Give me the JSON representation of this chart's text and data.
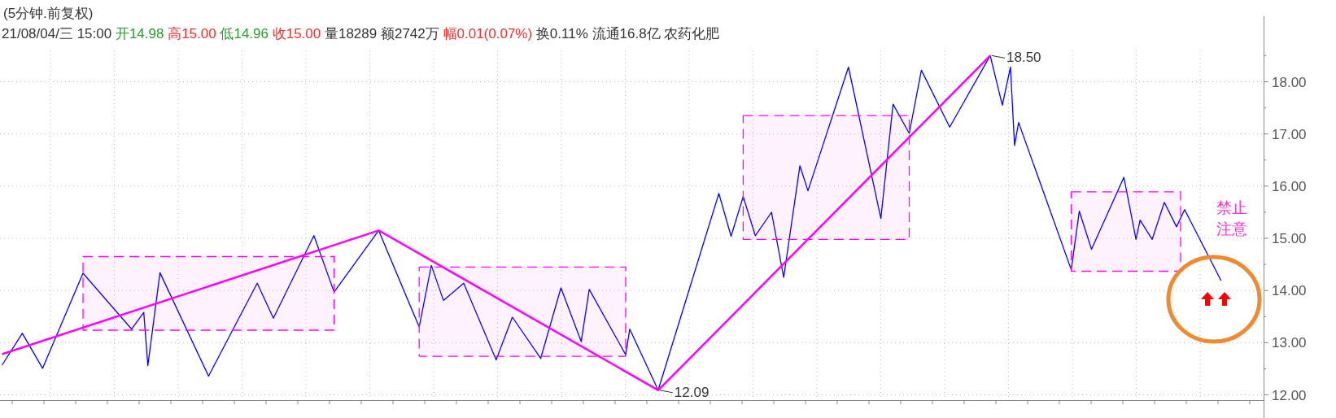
{
  "chart_data": {
    "type": "line",
    "title": "(5分钟.前复权)",
    "subtitle": "21/08/04/三 15:00 开14.98 高15.00 低14.96 收15.00 量18289 额2742万 幅0.01(0.07%) 换0.11% 流通16.8亿 农药化肥",
    "categories": [
      null,
      null,
      null,
      null,
      null,
      null,
      null,
      null,
      null,
      null,
      null,
      null,
      null,
      null,
      null,
      null,
      null,
      null,
      null,
      null,
      null,
      null,
      null,
      null,
      null,
      null,
      null,
      null,
      null,
      null,
      null,
      null,
      null,
      null,
      null,
      null,
      null,
      null,
      null,
      null,
      null,
      null,
      null,
      null,
      null,
      null,
      null,
      null,
      null,
      null,
      null,
      null,
      null,
      null,
      null,
      null,
      null,
      null,
      null,
      null,
      null,
      null,
      null,
      null,
      null,
      null,
      null,
      null,
      null,
      null,
      null,
      null,
      null,
      null,
      null,
      null,
      null,
      null,
      null,
      null,
      null,
      null,
      null,
      null,
      null,
      null,
      null,
      null,
      null,
      null,
      null,
      null,
      null,
      null,
      null,
      null,
      null,
      null,
      null,
      null,
      null,
      null,
      null,
      null,
      null,
      null,
      null,
      null,
      null,
      null,
      null,
      null,
      null,
      null,
      null,
      null,
      null,
      null,
      null,
      null,
      null,
      null,
      null,
      null,
      null,
      null,
      null,
      null,
      null,
      null,
      null,
      null,
      null,
      null,
      null,
      null,
      null,
      null,
      null,
      null,
      null,
      null,
      null,
      null,
      null,
      null,
      null,
      null,
      null,
      null,
      null,
      null,
      null,
      null,
      null,
      null,
      null,
      null,
      null,
      null,
      null,
      null,
      null,
      null,
      null,
      null,
      null,
      null,
      null,
      null,
      null,
      null,
      null,
      null,
      null,
      null,
      null,
      null,
      null,
      null,
      null,
      null,
      null,
      null,
      null,
      null,
      null,
      null,
      null,
      null,
      null,
      null,
      null,
      null,
      null,
      null,
      null,
      null,
      null,
      null,
      null,
      null,
      null,
      null,
      null,
      null,
      null,
      null,
      null,
      null,
      null,
      null,
      null,
      null,
      null,
      null,
      null,
      null,
      null,
      null,
      null,
      null,
      null,
      null,
      null,
      null,
      null,
      null,
      null,
      null,
      null,
      null,
      null,
      null,
      null,
      null,
      null,
      null,
      null,
      null,
      null,
      null,
      null,
      null,
      null,
      null,
      null,
      null,
      null,
      null,
      null,
      null,
      null,
      null,
      null,
      null,
      null,
      null,
      null,
      null,
      null,
      null,
      null,
      null,
      null,
      null,
      null,
      null,
      null,
      null,
      null,
      null,
      null,
      null,
      null,
      null,
      null,
      null,
      null,
      null,
      null,
      null,
      null,
      null,
      null,
      null,
      null,
      null,
      null,
      null,
      null,
      null,
      null,
      null,
      null,
      null,
      null,
      null,
      null,
      null,
      null,
      null,
      null,
      null,
      null,
      null,
      null,
      null,
      null,
      null,
      null,
      null
    ],
    "ylim": [
      11.9,
      18.6
    ],
    "yticks": [
      {
        "value": 12,
        "label": "12.00"
      },
      {
        "value": 13,
        "label": "13.00"
      },
      {
        "value": 14,
        "label": "14.00"
      },
      {
        "value": 15,
        "label": "15.00"
      },
      {
        "value": 16,
        "label": "16.00"
      },
      {
        "value": 17,
        "label": "17.00"
      },
      {
        "value": 18,
        "label": "18.00"
      }
    ],
    "tick_labels": "y",
    "grid": true,
    "marker": "none",
    "series": [
      {
        "color": "#0000ff",
        "line_style": "solid",
        "values": [
          12.57,
          null,
          null,
          null,
          null,
          13.18,
          null,
          null,
          null,
          null,
          12.51,
          null,
          null,
          null,
          null,
          null,
          null,
          null,
          null,
          null,
          14.33,
          null,
          null,
          null,
          null,
          null,
          null,
          null,
          null,
          null,
          null,
          null,
          13.26,
          null,
          null,
          13.58,
          12.56,
          null,
          null,
          14.34,
          null,
          null,
          null,
          null,
          null,
          null,
          null,
          null,
          null,
          null,
          null,
          12.36,
          null,
          null,
          null,
          null,
          null,
          null,
          null,
          null,
          null,
          null,
          null,
          14.14,
          null,
          null,
          null,
          13.47,
          null,
          null,
          null,
          null,
          null,
          null,
          null,
          null,
          null,
          15.05,
          null,
          null,
          null,
          null,
          13.97,
          null,
          null,
          null,
          null,
          null,
          null,
          null,
          null,
          null,
          null,
          15.15,
          null,
          null,
          null,
          null,
          null,
          null,
          null,
          null,
          null,
          13.3,
          null,
          null,
          14.48,
          null,
          null,
          13.81,
          null,
          null,
          null,
          null,
          14.14,
          null,
          null,
          null,
          null,
          null,
          null,
          null,
          12.67,
          null,
          null,
          null,
          13.49,
          null,
          null,
          null,
          null,
          null,
          null,
          12.7,
          null,
          null,
          null,
          null,
          14.05,
          null,
          null,
          null,
          null,
          13.02,
          null,
          14.02,
          null,
          null,
          null,
          null,
          null,
          null,
          null,
          null,
          12.77,
          13.26,
          null,
          null,
          null,
          null,
          null,
          null,
          12.09,
          null,
          null,
          null,
          null,
          null,
          null,
          null,
          null,
          null,
          null,
          null,
          null,
          null,
          null,
          15.86,
          null,
          null,
          15.04,
          null,
          null,
          15.8,
          null,
          null,
          15.05,
          null,
          null,
          null,
          15.5,
          null,
          null,
          14.25,
          null,
          null,
          null,
          16.39,
          null,
          15.91,
          null,
          null,
          null,
          null,
          null,
          null,
          null,
          null,
          null,
          18.28,
          null,
          null,
          null,
          null,
          null,
          null,
          null,
          15.38,
          null,
          null,
          17.57,
          null,
          null,
          null,
          17.01,
          null,
          null,
          18.22,
          null,
          null,
          null,
          null,
          null,
          null,
          17.13,
          null,
          null,
          null,
          null,
          null,
          null,
          null,
          null,
          null,
          18.5,
          null,
          null,
          17.55,
          null,
          18.28,
          16.78,
          17.22,
          null,
          null,
          null,
          null,
          null,
          null,
          null,
          null,
          null,
          null,
          null,
          null,
          14.4,
          null,
          15.52,
          null,
          null,
          14.79,
          null,
          null,
          null,
          null,
          null,
          null,
          null,
          16.17,
          null,
          null,
          14.98,
          15.35,
          null,
          null,
          14.98,
          null,
          null,
          15.69,
          null,
          null,
          15.22,
          null,
          15.55,
          null,
          null,
          null,
          null,
          null,
          null,
          null,
          null,
          14.19,
          null,
          null,
          null,
          null,
          null,
          null,
          null,
          null,
          null,
          null
        ]
      },
      {
        "color": "#ff00ff",
        "line_style": "solid",
        "values": [
          12.78,
          null,
          null,
          null,
          null,
          null,
          null,
          null,
          null,
          null,
          null,
          null,
          null,
          null,
          null,
          null,
          null,
          null,
          null,
          null,
          null,
          null,
          null,
          null,
          null,
          null,
          null,
          null,
          null,
          null,
          null,
          null,
          null,
          null,
          null,
          null,
          null,
          null,
          null,
          null,
          null,
          null,
          null,
          null,
          null,
          null,
          null,
          null,
          null,
          null,
          null,
          null,
          null,
          null,
          null,
          null,
          null,
          null,
          null,
          null,
          null,
          null,
          null,
          null,
          null,
          null,
          null,
          null,
          null,
          null,
          null,
          null,
          null,
          null,
          null,
          null,
          null,
          null,
          null,
          null,
          null,
          null,
          null,
          null,
          null,
          null,
          null,
          null,
          null,
          null,
          null,
          null,
          null,
          15.15,
          null,
          null,
          null,
          null,
          null,
          null,
          null,
          null,
          null,
          null,
          null,
          null,
          null,
          null,
          null,
          null,
          null,
          null,
          null,
          null,
          null,
          null,
          null,
          null,
          null,
          null,
          null,
          null,
          null,
          null,
          null,
          null,
          null,
          null,
          null,
          null,
          null,
          null,
          null,
          null,
          null,
          null,
          null,
          null,
          null,
          null,
          null,
          null,
          null,
          null,
          null,
          null,
          null,
          null,
          null,
          null,
          null,
          null,
          null,
          null,
          null,
          null,
          null,
          null,
          null,
          null,
          null,
          null,
          12.09,
          null,
          null,
          null,
          null,
          null,
          null,
          null,
          null,
          null,
          null,
          null,
          null,
          null,
          null,
          null,
          null,
          null,
          null,
          null,
          null,
          null,
          null,
          null,
          null,
          null,
          null,
          null,
          null,
          null,
          null,
          null,
          null,
          null,
          null,
          null,
          null,
          null,
          null,
          null,
          null,
          null,
          null,
          null,
          null,
          null,
          null,
          null,
          null,
          null,
          null,
          null,
          null,
          null,
          null,
          null,
          null,
          null,
          null,
          null,
          null,
          null,
          null,
          null,
          null,
          null,
          null,
          null,
          null,
          null,
          null,
          null,
          null,
          null,
          null,
          null,
          null,
          null,
          null,
          null,
          null,
          null,
          18.5,
          null,
          null,
          null,
          null,
          null,
          null,
          null,
          null,
          null,
          null,
          null,
          null,
          null,
          null,
          null,
          null,
          null,
          null,
          null,
          null,
          null,
          null,
          null,
          null,
          null,
          null,
          null,
          null,
          null,
          null,
          null,
          null,
          null,
          null,
          null,
          null,
          null,
          null,
          null,
          null,
          null,
          null,
          null,
          null,
          null,
          null,
          null,
          null,
          null,
          null,
          null,
          null,
          null,
          null,
          null,
          null,
          null,
          null,
          null,
          null,
          null,
          null,
          null,
          null,
          null,
          null,
          null
        ]
      },
      {
        "color": "#ff00ff",
        "line_style": "dashed",
        "values": [
          null,
          null,
          null,
          null,
          null,
          null,
          null,
          null,
          null,
          null,
          null,
          null,
          null,
          null,
          null,
          null,
          null,
          null,
          null,
          null,
          null,
          null,
          null,
          null,
          null,
          null,
          null,
          null,
          null,
          null,
          null,
          null,
          null,
          null,
          null,
          null,
          null,
          null,
          null,
          null,
          null,
          null,
          null,
          null,
          null,
          null,
          null,
          null,
          null,
          null,
          null,
          null,
          null,
          null,
          null,
          null,
          null,
          null,
          null,
          null,
          null,
          null,
          null,
          null,
          null,
          null,
          null,
          null,
          null,
          null,
          null,
          null,
          null,
          null,
          null,
          null,
          null,
          null,
          null,
          null,
          null,
          null,
          null,
          null,
          null,
          null,
          null,
          null,
          null,
          null,
          null,
          null,
          null,
          null,
          null,
          null,
          null,
          null,
          null,
          null,
          null,
          null,
          null,
          null,
          null,
          null,
          null,
          null,
          null,
          null,
          null,
          null,
          null,
          null,
          null,
          null,
          null,
          null,
          null,
          null,
          null,
          null,
          null,
          null,
          null,
          null,
          null,
          null,
          null,
          null,
          null,
          null,
          null,
          null,
          null,
          null,
          null,
          null,
          null,
          null,
          null,
          null,
          null,
          null,
          null,
          null,
          null,
          null,
          null,
          null,
          null,
          null,
          null,
          null,
          null,
          null,
          null,
          null,
          null,
          null,
          null,
          null,
          null,
          null,
          null,
          null,
          null,
          null,
          null,
          null,
          null,
          null,
          null,
          null,
          null,
          null,
          null,
          null,
          null,
          null,
          null,
          null,
          null,
          null,
          null,
          null,
          null,
          null,
          null,
          null,
          null,
          null,
          null,
          null,
          null,
          null,
          null,
          null,
          null,
          null,
          null,
          null,
          null,
          null,
          null,
          null,
          null,
          null,
          null,
          null,
          null,
          null,
          null,
          null,
          null,
          null,
          null,
          null,
          null,
          null,
          null,
          null,
          null,
          null,
          null,
          null,
          null,
          null,
          null,
          null,
          null,
          null,
          null,
          null,
          null,
          null,
          null,
          null,
          null,
          null,
          null,
          null,
          null,
          null,
          null,
          null,
          null,
          null,
          null,
          null,
          null,
          null,
          null,
          null,
          null,
          null,
          null,
          null,
          null,
          null,
          null,
          null,
          null,
          null,
          null,
          null,
          null,
          null,
          null,
          null,
          null,
          null,
          null,
          null,
          null,
          null,
          null,
          null,
          null,
          null,
          null,
          null,
          null,
          null,
          null,
          null,
          null,
          null,
          null,
          null,
          null,
          null,
          null,
          null,
          null,
          null,
          null,
          null,
          null,
          null,
          null,
          null,
          null,
          null,
          null,
          null,
          null,
          null,
          null,
          null,
          null,
          null
        ],
        "upper": [
          null,
          null,
          null,
          null,
          null,
          null,
          null,
          null,
          null,
          null,
          null,
          null,
          null,
          null,
          null,
          null,
          null,
          null,
          null,
          null,
          14.65,
          null,
          null,
          null,
          null,
          null,
          null,
          null,
          null,
          null,
          null,
          null,
          null,
          null,
          null,
          null,
          null,
          null,
          null,
          null,
          null,
          null,
          null,
          null,
          null,
          null,
          null,
          null,
          null,
          null,
          null,
          null,
          null,
          null,
          null,
          null,
          null,
          null,
          null,
          null,
          null,
          null,
          null,
          null,
          null,
          null,
          null,
          null,
          null,
          null,
          null,
          null,
          null,
          null,
          null,
          null,
          null,
          null,
          null,
          null,
          null,
          null,
          14.65,
          null,
          null,
          null,
          null,
          null,
          null,
          null,
          null,
          null,
          null,
          null,
          null,
          null,
          null,
          null,
          null,
          null,
          null,
          null,
          null,
          14.45,
          null,
          null,
          null,
          null,
          null,
          null,
          null,
          null,
          null,
          null,
          null,
          null,
          null,
          null,
          null,
          null,
          null,
          null,
          null,
          null,
          null,
          null,
          null,
          null,
          null,
          null,
          null,
          null,
          null,
          null,
          null,
          null,
          null,
          null,
          null,
          null,
          null,
          null,
          null,
          null,
          null,
          null,
          null,
          null,
          null,
          null,
          null,
          null,
          null,
          null,
          14.45,
          null,
          null,
          null,
          null,
          null,
          null,
          null,
          null,
          null,
          null,
          null,
          null,
          null,
          null,
          null,
          null,
          null,
          null,
          null,
          null,
          null,
          null,
          null,
          null,
          null,
          null,
          null,
          null,
          17.35,
          null,
          null,
          null,
          null,
          null,
          null,
          null,
          null,
          null,
          null,
          null,
          null,
          null,
          null,
          null,
          null,
          null,
          null,
          null,
          null,
          null,
          null,
          null,
          null,
          null,
          null,
          null,
          null,
          null,
          null,
          null,
          null,
          null,
          null,
          null,
          null,
          null,
          null,
          null,
          null,
          17.35,
          null,
          null,
          null,
          null,
          null,
          null,
          null,
          null,
          null,
          null,
          null,
          null,
          null,
          null,
          null,
          null,
          null,
          null,
          null,
          null,
          null,
          null,
          null,
          null,
          null,
          null,
          null,
          null,
          null,
          null,
          null,
          null,
          null,
          null,
          null,
          null,
          null,
          null,
          null,
          15.89,
          null,
          null,
          null,
          null,
          null,
          null,
          null,
          null,
          null,
          null,
          null,
          null,
          null,
          null,
          null,
          null,
          null,
          null,
          null,
          null,
          null,
          null,
          null,
          null,
          null,
          null,
          15.89,
          null,
          null,
          null,
          null,
          null,
          null,
          null,
          null,
          null,
          null,
          null,
          null,
          null,
          null,
          null,
          null,
          null,
          null,
          null,
          null
        ],
        "lower": [
          null,
          null,
          null,
          null,
          null,
          null,
          null,
          null,
          null,
          null,
          null,
          null,
          null,
          null,
          null,
          null,
          null,
          null,
          null,
          null,
          13.24,
          null,
          null,
          null,
          null,
          null,
          null,
          null,
          null,
          null,
          null,
          null,
          null,
          null,
          null,
          null,
          null,
          null,
          null,
          null,
          null,
          null,
          null,
          null,
          null,
          null,
          null,
          null,
          null,
          null,
          null,
          null,
          null,
          null,
          null,
          null,
          null,
          null,
          null,
          null,
          null,
          null,
          null,
          null,
          null,
          null,
          null,
          null,
          null,
          null,
          null,
          null,
          null,
          null,
          null,
          null,
          null,
          null,
          null,
          null,
          null,
          null,
          13.24,
          null,
          null,
          null,
          null,
          null,
          null,
          null,
          null,
          null,
          null,
          null,
          null,
          null,
          null,
          null,
          null,
          null,
          null,
          null,
          null,
          12.74,
          null,
          null,
          null,
          null,
          null,
          null,
          null,
          null,
          null,
          null,
          null,
          null,
          null,
          null,
          null,
          null,
          null,
          null,
          null,
          null,
          null,
          null,
          null,
          null,
          null,
          null,
          null,
          null,
          null,
          null,
          null,
          null,
          null,
          null,
          null,
          null,
          null,
          null,
          null,
          null,
          null,
          null,
          null,
          null,
          null,
          null,
          null,
          null,
          null,
          null,
          12.74,
          null,
          null,
          null,
          null,
          null,
          null,
          null,
          null,
          null,
          null,
          null,
          null,
          null,
          null,
          null,
          null,
          null,
          null,
          null,
          null,
          null,
          null,
          null,
          null,
          null,
          null,
          null,
          null,
          14.98,
          null,
          null,
          null,
          null,
          null,
          null,
          null,
          null,
          null,
          null,
          null,
          null,
          null,
          null,
          null,
          null,
          null,
          null,
          null,
          null,
          null,
          null,
          null,
          null,
          null,
          null,
          null,
          null,
          null,
          null,
          null,
          null,
          null,
          null,
          null,
          null,
          null,
          null,
          null,
          null,
          14.98,
          null,
          null,
          null,
          null,
          null,
          null,
          null,
          null,
          null,
          null,
          null,
          null,
          null,
          null,
          null,
          null,
          null,
          null,
          null,
          null,
          null,
          null,
          null,
          null,
          null,
          null,
          null,
          null,
          null,
          null,
          null,
          null,
          null,
          null,
          null,
          null,
          null,
          null,
          null,
          14.37,
          null,
          null,
          null,
          null,
          null,
          null,
          null,
          null,
          null,
          null,
          null,
          null,
          null,
          null,
          null,
          null,
          null,
          null,
          null,
          null,
          null,
          null,
          null,
          null,
          null,
          null,
          14.37,
          null,
          null,
          null,
          null,
          null,
          null,
          null,
          null,
          null,
          null,
          null,
          null,
          null,
          null,
          null,
          null,
          null,
          null,
          null,
          null
        ]
      }
    ],
    "annotations": [
      "18.50",
      "12.09",
      "禁止",
      "注意"
    ]
  }
}
